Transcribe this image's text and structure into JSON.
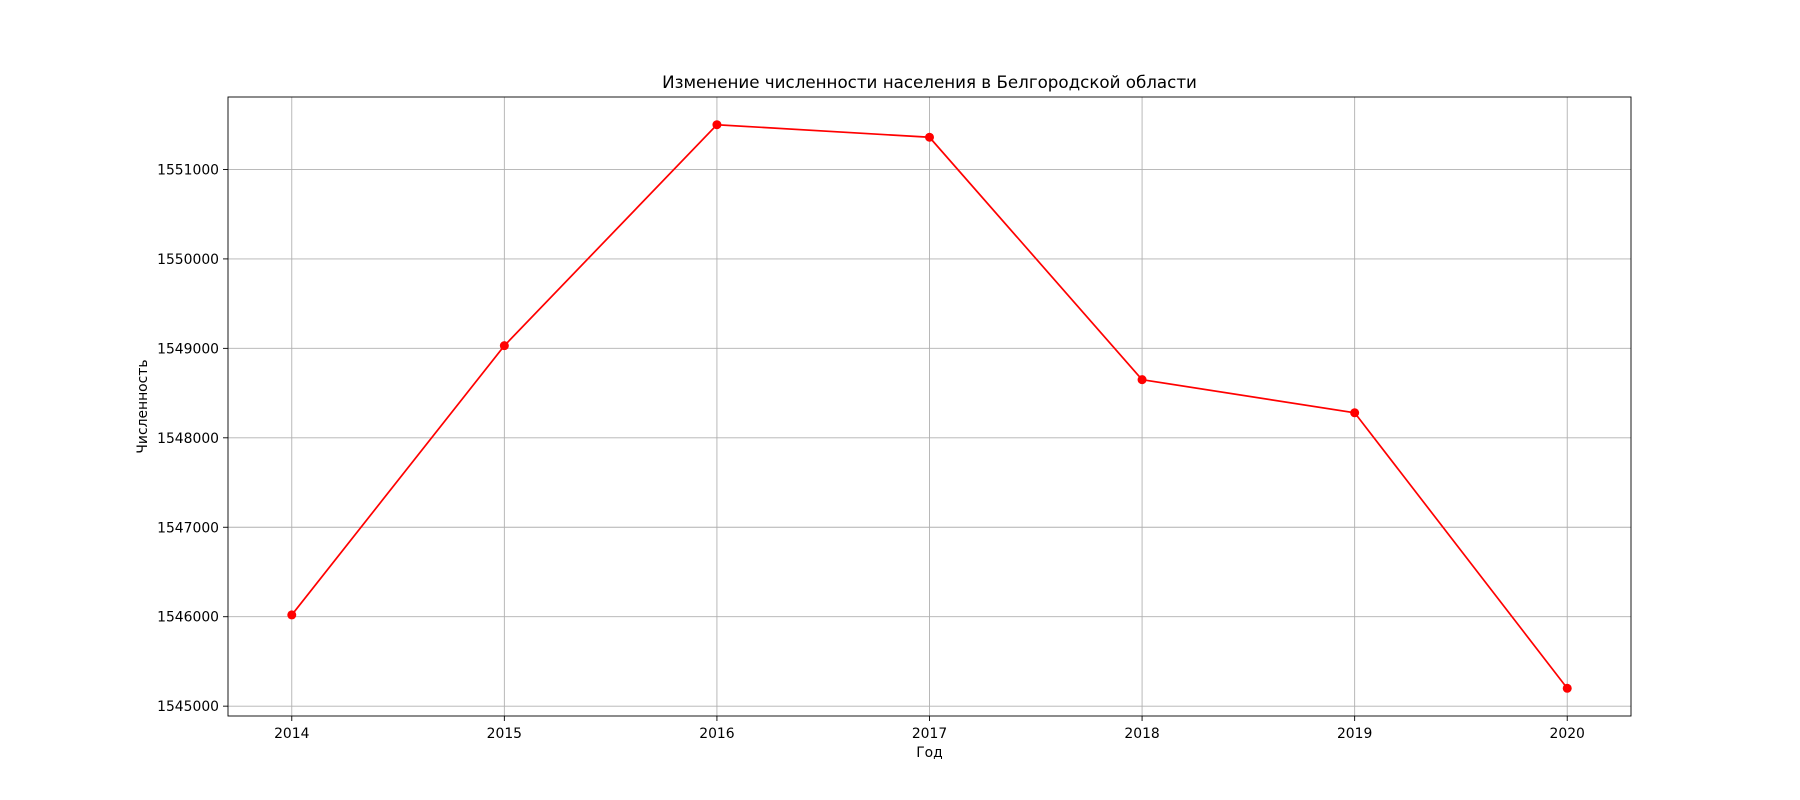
{
  "chart_data": {
    "type": "line",
    "title": "Изменение численности населения в Белгородской области",
    "xlabel": "Год",
    "ylabel": "Численность",
    "x": [
      2014,
      2015,
      2016,
      2017,
      2018,
      2019,
      2020
    ],
    "series": [
      {
        "values": [
          1546020,
          1549030,
          1551500,
          1551360,
          1548650,
          1548280,
          1545200
        ],
        "color": "#ff0000",
        "marker": "circle"
      }
    ],
    "xticks": [
      "2014",
      "2015",
      "2016",
      "2017",
      "2018",
      "2019",
      "2020"
    ],
    "yticks": [
      1545000,
      1546000,
      1547000,
      1548000,
      1549000,
      1550000,
      1551000
    ],
    "xlim": [
      2013.7,
      2020.3
    ],
    "ylim": [
      1544890,
      1551810
    ],
    "grid": true
  }
}
